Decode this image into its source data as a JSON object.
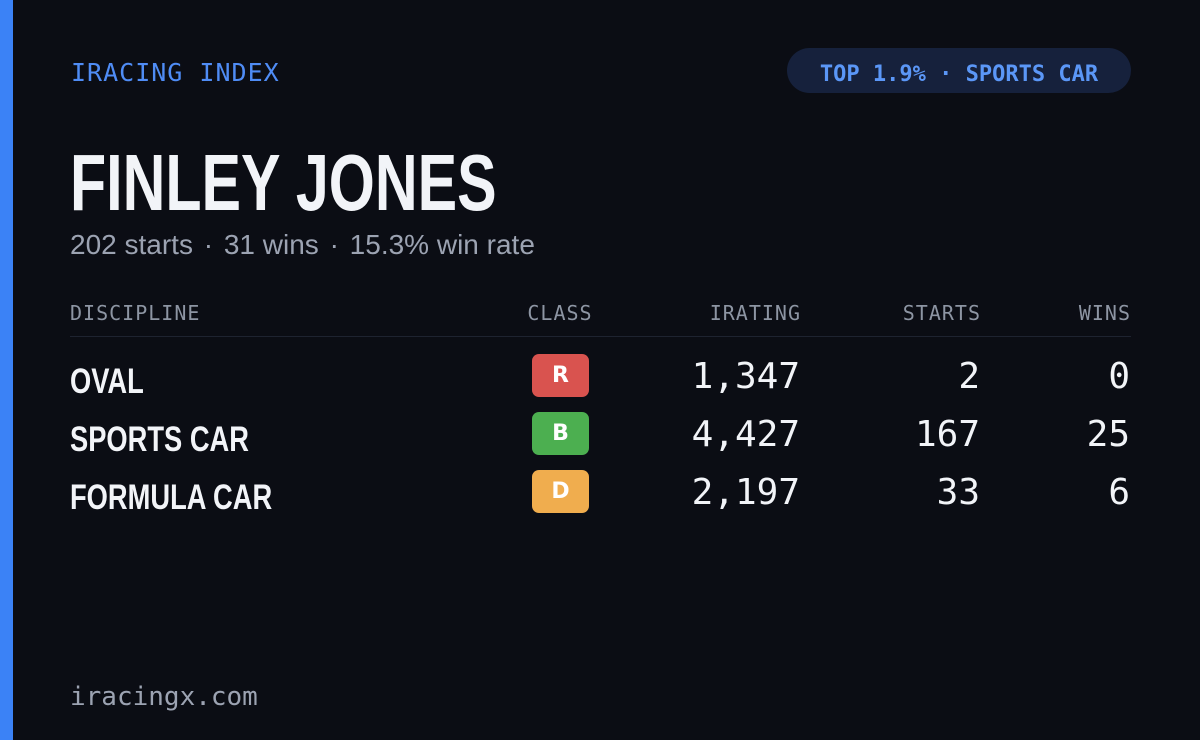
{
  "brand": "IRACING INDEX",
  "badge": "TOP 1.9% · SPORTS CAR",
  "driver": {
    "name": "FINLEY JONES",
    "starts": "202 starts",
    "wins": "31 wins",
    "win_rate": "15.3% win rate",
    "separator": "·"
  },
  "table": {
    "headers": {
      "discipline": "DISCIPLINE",
      "class": "CLASS",
      "irating": "IRATING",
      "starts": "STARTS",
      "wins": "WINS"
    },
    "rows": [
      {
        "discipline": "OVAL",
        "class": "R",
        "class_color": "#d9534f",
        "irating": "1,347",
        "starts": "2",
        "wins": "0"
      },
      {
        "discipline": "SPORTS CAR",
        "class": "B",
        "class_color": "#4caf50",
        "irating": "4,427",
        "starts": "167",
        "wins": "25"
      },
      {
        "discipline": "FORMULA CAR",
        "class": "D",
        "class_color": "#f0ad4e",
        "irating": "2,197",
        "starts": "33",
        "wins": "6"
      }
    ]
  },
  "footer": "iracingx.com",
  "colors": {
    "accent": "#3b82f6",
    "background": "#0b0d14",
    "badge_bg": "#16213c"
  }
}
